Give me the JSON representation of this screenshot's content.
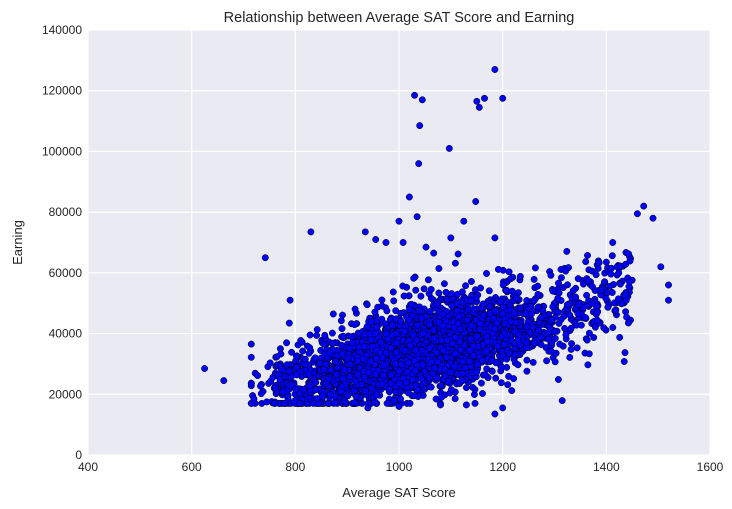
{
  "chart_data": {
    "type": "scatter",
    "title": "Relationship  between Average SAT Score and Earning",
    "xlabel": "Average SAT Score",
    "ylabel": "Earning",
    "xlim": [
      400,
      1600
    ],
    "ylim": [
      0,
      140000
    ],
    "xticks": [
      "400",
      "600",
      "800",
      "1000",
      "1200",
      "1400",
      "1600"
    ],
    "yticks": [
      "0",
      "20000",
      "40000",
      "60000",
      "80000",
      "100000",
      "120000",
      "140000"
    ],
    "grid": true,
    "legend": "none",
    "colors": {
      "background": "#eaeaf2",
      "grid": "#ffffff",
      "marker": "#0000ff",
      "marker_edge": "#000000"
    },
    "outliers": [
      [
        625,
        28500
      ],
      [
        662,
        24500
      ],
      [
        742,
        65000
      ],
      [
        790,
        51000
      ],
      [
        830,
        73500
      ],
      [
        935,
        73500
      ],
      [
        955,
        71000
      ],
      [
        975,
        70000
      ],
      [
        1000,
        77000
      ],
      [
        1008,
        70000
      ],
      [
        1020,
        85000
      ],
      [
        1030,
        118500
      ],
      [
        1035,
        78500
      ],
      [
        1038,
        96000
      ],
      [
        1040,
        108500
      ],
      [
        1045,
        117000
      ],
      [
        1052,
        68500
      ],
      [
        1067,
        66500
      ],
      [
        1097,
        101000
      ],
      [
        1100,
        71500
      ],
      [
        1125,
        77000
      ],
      [
        1148,
        83500
      ],
      [
        1150,
        116500
      ],
      [
        1155,
        114500
      ],
      [
        1165,
        117500
      ],
      [
        1185,
        127000
      ],
      [
        1185,
        71500
      ],
      [
        1200,
        117500
      ],
      [
        1185,
        13500
      ],
      [
        1200,
        15500
      ],
      [
        1080,
        16500
      ],
      [
        1130,
        16500
      ],
      [
        1000,
        16000
      ],
      [
        940,
        15500
      ],
      [
        720,
        18500
      ],
      [
        745,
        17500
      ],
      [
        1472,
        82000
      ],
      [
        1460,
        79500
      ],
      [
        1490,
        78000
      ],
      [
        1505,
        62000
      ],
      [
        1520,
        56000
      ],
      [
        1520,
        51000
      ]
    ],
    "bulk_description": "Dense cloud of several thousand institutions; earnings rise with SAT score from roughly 25000 near 800 to roughly 55000 near 1450",
    "bulk_series_points": 3600
  }
}
